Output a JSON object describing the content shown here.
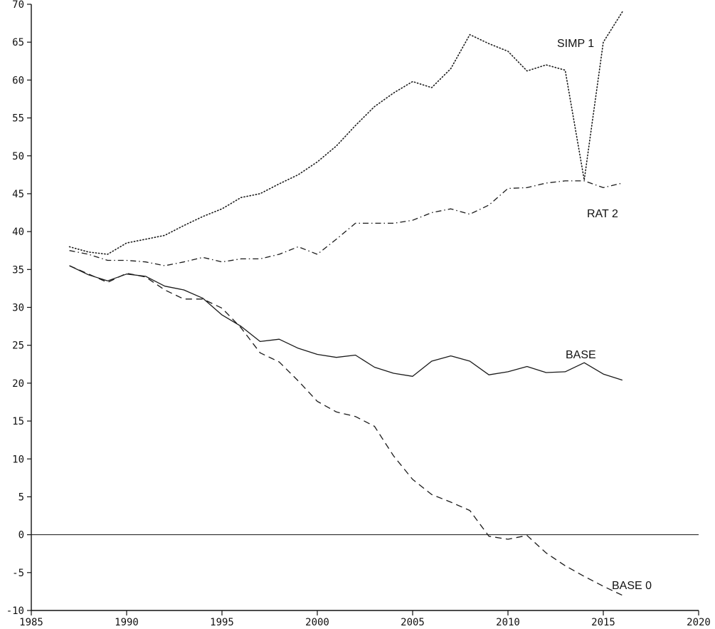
{
  "chart_data": {
    "type": "line",
    "title": "",
    "xlabel": "",
    "ylabel": "",
    "xlim": [
      1985,
      2020
    ],
    "ylim": [
      -10,
      70
    ],
    "xticks": [
      "1985",
      "1990",
      "1995",
      "2000",
      "2005",
      "2010",
      "2015",
      "2020"
    ],
    "yticks": [
      "-10",
      "-5",
      "0",
      "5",
      "10",
      "15",
      "20",
      "25",
      "30",
      "35",
      "40",
      "45",
      "50",
      "55",
      "60",
      "65",
      "70"
    ],
    "grid": false,
    "reference_line": 0,
    "series": [
      {
        "name": "SIMP 1",
        "line_style": "dotted",
        "x": [
          1987,
          1988,
          1989,
          1990,
          1991,
          1992,
          1993,
          1994,
          1995,
          1996,
          1997,
          1998,
          1999,
          2000,
          2001,
          2002,
          2003,
          2004,
          2005,
          2006,
          2007,
          2008,
          2009,
          2010,
          2011,
          2012,
          2013,
          2014,
          2015,
          2016
        ],
        "values": [
          38.0,
          37.3,
          37.0,
          38.5,
          39.0,
          39.5,
          40.8,
          42.0,
          43.0,
          44.5,
          45.0,
          46.3,
          47.5,
          49.2,
          51.3,
          54.0,
          56.5,
          58.3,
          59.8,
          59.0,
          61.5,
          66.0,
          64.8,
          63.8,
          61.2,
          62.0,
          61.3,
          46.8,
          65.0,
          69.0
        ]
      },
      {
        "name": "RAT 2",
        "line_style": "dash-dot",
        "x": [
          1987,
          1988,
          1989,
          1990,
          1991,
          1992,
          1993,
          1994,
          1995,
          1996,
          1997,
          1998,
          1999,
          2000,
          2001,
          2002,
          2003,
          2004,
          2005,
          2006,
          2007,
          2008,
          2009,
          2010,
          2011,
          2012,
          2013,
          2014,
          2015,
          2016
        ],
        "values": [
          37.5,
          37.0,
          36.2,
          36.2,
          36.0,
          35.5,
          36.0,
          36.6,
          36.0,
          36.4,
          36.4,
          37.0,
          38.0,
          37.0,
          39.0,
          41.1,
          41.1,
          41.1,
          41.5,
          42.5,
          43.0,
          42.3,
          43.5,
          45.7,
          45.8,
          46.4,
          46.7,
          46.7,
          45.8,
          46.4
        ]
      },
      {
        "name": "BASE",
        "line_style": "solid",
        "x": [
          1987,
          1988,
          1989,
          1990,
          1991,
          1992,
          1993,
          1994,
          1995,
          1996,
          1997,
          1998,
          1999,
          2000,
          2001,
          2002,
          2003,
          2004,
          2005,
          2006,
          2007,
          2008,
          2009,
          2010,
          2011,
          2012,
          2013,
          2014,
          2015,
          2016
        ],
        "values": [
          35.5,
          34.3,
          33.5,
          34.4,
          34.1,
          32.8,
          32.3,
          31.2,
          29.0,
          27.5,
          25.5,
          25.8,
          24.6,
          23.8,
          23.4,
          23.7,
          22.1,
          21.3,
          20.9,
          22.9,
          23.6,
          22.9,
          21.1,
          21.5,
          22.2,
          21.4,
          21.5,
          22.7,
          21.2,
          20.4
        ]
      },
      {
        "name": "BASE 0",
        "line_style": "dashed",
        "x": [
          1987,
          1988,
          1989,
          1990,
          1991,
          1992,
          1993,
          1994,
          1995,
          1996,
          1997,
          1998,
          1999,
          2000,
          2001,
          2002,
          2003,
          2004,
          2005,
          2006,
          2007,
          2008,
          2009,
          2010,
          2011,
          2012,
          2013,
          2014,
          2015,
          2016
        ],
        "values": [
          35.5,
          34.4,
          33.3,
          34.5,
          34.0,
          32.3,
          31.1,
          31.1,
          29.9,
          27.3,
          24.0,
          22.8,
          20.3,
          17.6,
          16.2,
          15.6,
          14.3,
          10.4,
          7.3,
          5.3,
          4.3,
          3.2,
          -0.2,
          -0.6,
          -0.1,
          -2.4,
          -4.1,
          -5.5,
          -6.8,
          -8.0
        ]
      }
    ]
  }
}
